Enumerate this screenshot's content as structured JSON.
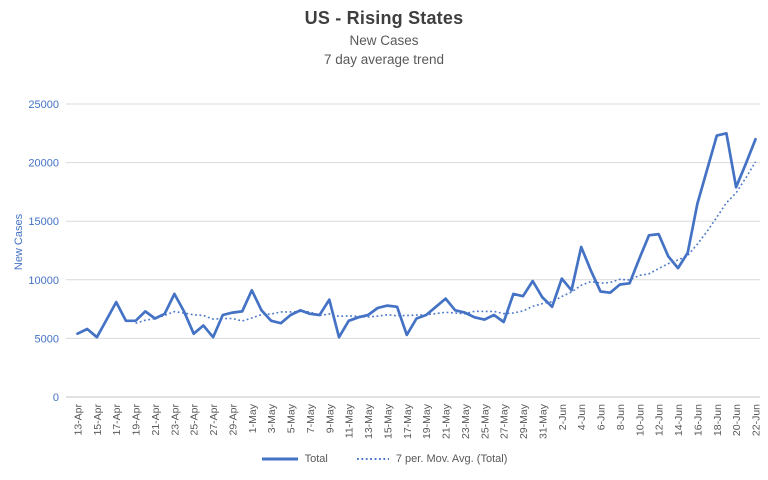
{
  "chart_data": {
    "type": "line",
    "title": "US - Rising States",
    "subtitle": [
      "New Cases",
      "7 day average trend"
    ],
    "ylabel": "New Cases",
    "ylim": [
      0,
      25000
    ],
    "yticks": [
      0,
      5000,
      10000,
      15000,
      20000,
      25000
    ],
    "grid": "horizontal",
    "legend_position": "bottom",
    "x_tick_step": 2,
    "x": [
      "13-Apr",
      "14-Apr",
      "15-Apr",
      "16-Apr",
      "17-Apr",
      "18-Apr",
      "19-Apr",
      "20-Apr",
      "21-Apr",
      "22-Apr",
      "23-Apr",
      "24-Apr",
      "25-Apr",
      "26-Apr",
      "27-Apr",
      "28-Apr",
      "29-Apr",
      "30-Apr",
      "1-May",
      "2-May",
      "3-May",
      "4-May",
      "5-May",
      "6-May",
      "7-May",
      "8-May",
      "9-May",
      "10-May",
      "11-May",
      "12-May",
      "13-May",
      "14-May",
      "15-May",
      "16-May",
      "17-May",
      "18-May",
      "19-May",
      "20-May",
      "21-May",
      "22-May",
      "23-May",
      "24-May",
      "25-May",
      "26-May",
      "27-May",
      "28-May",
      "29-May",
      "30-May",
      "31-May",
      "1-Jun",
      "2-Jun",
      "3-Jun",
      "4-Jun",
      "5-Jun",
      "6-Jun",
      "7-Jun",
      "8-Jun",
      "9-Jun",
      "10-Jun",
      "11-Jun",
      "12-Jun",
      "13-Jun",
      "14-Jun",
      "15-Jun",
      "16-Jun",
      "17-Jun",
      "18-Jun",
      "19-Jun",
      "20-Jun",
      "21-Jun",
      "22-Jun"
    ],
    "series": [
      {
        "name": "Total",
        "style": "solid",
        "values": [
          5400,
          5800,
          5100,
          6600,
          8100,
          6500,
          6500,
          7300,
          6700,
          7100,
          8800,
          7300,
          5400,
          6100,
          5100,
          7000,
          7200,
          7300,
          9100,
          7400,
          6500,
          6300,
          7000,
          7400,
          7100,
          7000,
          8300,
          5100,
          6500,
          6800,
          7000,
          7600,
          7800,
          7700,
          5300,
          6700,
          7000,
          7700,
          8400,
          7400,
          7200,
          6800,
          6600,
          7000,
          6400,
          8800,
          8600,
          9900,
          8500,
          7700,
          10100,
          9100,
          12800,
          10800,
          9000,
          8900,
          9600,
          9700,
          11800,
          13800,
          13900,
          12000,
          11000,
          12300,
          16500,
          19400,
          22300,
          22500,
          17900,
          19900,
          22000
        ]
      },
      {
        "name": "7 per. Mov. Avg. (Total)",
        "style": "dotted",
        "derived_from": "Total",
        "window": 7
      }
    ]
  },
  "colors": {
    "line": "#4472C4",
    "mov_avg": "#4C78C8",
    "gridline": "#D9D9D9",
    "axis_line": "#C3C3C3",
    "title": "#3F3F3F",
    "subtitle": "#595959",
    "x_tick": "#595959",
    "y_tick": "#4472C4"
  }
}
